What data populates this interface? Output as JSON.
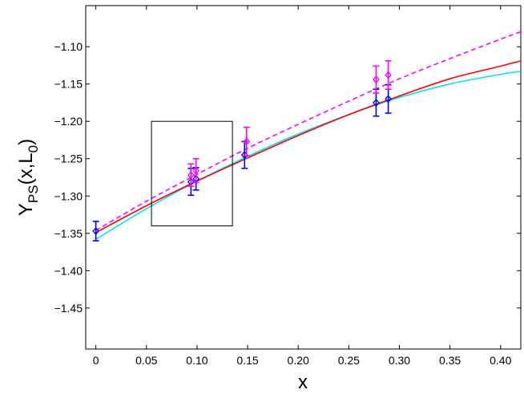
{
  "chart_data": {
    "type": "line",
    "xlabel": "x",
    "ylabel": {
      "main": "Y",
      "sub": "PS",
      "arg_open": "(x,L",
      "arg_sub": "0",
      "arg_close": ")"
    },
    "xlim": [
      -0.01,
      0.42
    ],
    "ylim": [
      -1.505,
      -1.045
    ],
    "xticks": [
      0,
      0.05,
      0.1,
      0.15,
      0.2,
      0.25,
      0.3,
      0.35,
      0.4
    ],
    "xtick_labels": [
      "0",
      "0.05",
      "0.10",
      "0.15",
      "0.20",
      "0.25",
      "0.30",
      "0.35",
      "0.40"
    ],
    "yticks": [
      -1.1,
      -1.15,
      -1.2,
      -1.25,
      -1.3,
      -1.35,
      -1.4,
      -1.45
    ],
    "ytick_labels": [
      "-1.10",
      "-1.15",
      "-1.20",
      "-1.25",
      "-1.30",
      "-1.35",
      "-1.40",
      "-1.45"
    ],
    "grid": false,
    "legend": "none",
    "lines": [
      {
        "color": "#ff00ff",
        "style": "dashed",
        "x": [
          0,
          0.05,
          0.1,
          0.15,
          0.2,
          0.25,
          0.3,
          0.35,
          0.4,
          0.42
        ],
        "y": [
          -1.346,
          -1.307,
          -1.271,
          -1.236,
          -1.204,
          -1.173,
          -1.143,
          -1.116,
          -1.09,
          -1.08
        ]
      },
      {
        "color": "#ff0000",
        "style": "solid",
        "x": [
          0,
          0.05,
          0.1,
          0.15,
          0.2,
          0.25,
          0.3,
          0.35,
          0.4,
          0.42
        ],
        "y": [
          -1.349,
          -1.313,
          -1.28,
          -1.249,
          -1.219,
          -1.191,
          -1.166,
          -1.143,
          -1.126,
          -1.119
        ]
      },
      {
        "color": "#00e5ee",
        "style": "solid",
        "x": [
          0,
          0.05,
          0.1,
          0.15,
          0.2,
          0.25,
          0.3,
          0.35,
          0.4,
          0.42
        ],
        "y": [
          -1.358,
          -1.317,
          -1.28,
          -1.247,
          -1.217,
          -1.191,
          -1.168,
          -1.15,
          -1.137,
          -1.133
        ]
      }
    ],
    "points": [
      {
        "series": "blue",
        "color": "#0000ff",
        "x": 0.0,
        "y": -1.347,
        "err": 0.013
      },
      {
        "series": "blue",
        "color": "#0000ff",
        "x": 0.094,
        "y": -1.281,
        "err": 0.018
      },
      {
        "series": "blue",
        "color": "#0000ff",
        "x": 0.099,
        "y": -1.277,
        "err": 0.015
      },
      {
        "series": "blue",
        "color": "#0000ff",
        "x": 0.147,
        "y": -1.245,
        "err": 0.018
      },
      {
        "series": "blue",
        "color": "#0000ff",
        "x": 0.277,
        "y": -1.175,
        "err": 0.018
      },
      {
        "series": "blue",
        "color": "#0000ff",
        "x": 0.289,
        "y": -1.17,
        "err": 0.019
      },
      {
        "series": "magenta",
        "color": "#ff00ff",
        "x": 0.094,
        "y": -1.272,
        "err": 0.015
      },
      {
        "series": "magenta",
        "color": "#ff00ff",
        "x": 0.099,
        "y": -1.266,
        "err": 0.016
      },
      {
        "series": "magenta",
        "color": "#ff00ff",
        "x": 0.149,
        "y": -1.227,
        "err": 0.019
      },
      {
        "series": "magenta",
        "color": "#ff00ff",
        "x": 0.277,
        "y": -1.144,
        "err": 0.018
      },
      {
        "series": "magenta",
        "color": "#ff00ff",
        "x": 0.289,
        "y": -1.138,
        "err": 0.019
      }
    ],
    "annotations": [
      {
        "type": "rectangle",
        "x": [
          0.055,
          0.135
        ],
        "y": [
          -1.34,
          -1.2
        ],
        "color": "#000000"
      }
    ]
  }
}
